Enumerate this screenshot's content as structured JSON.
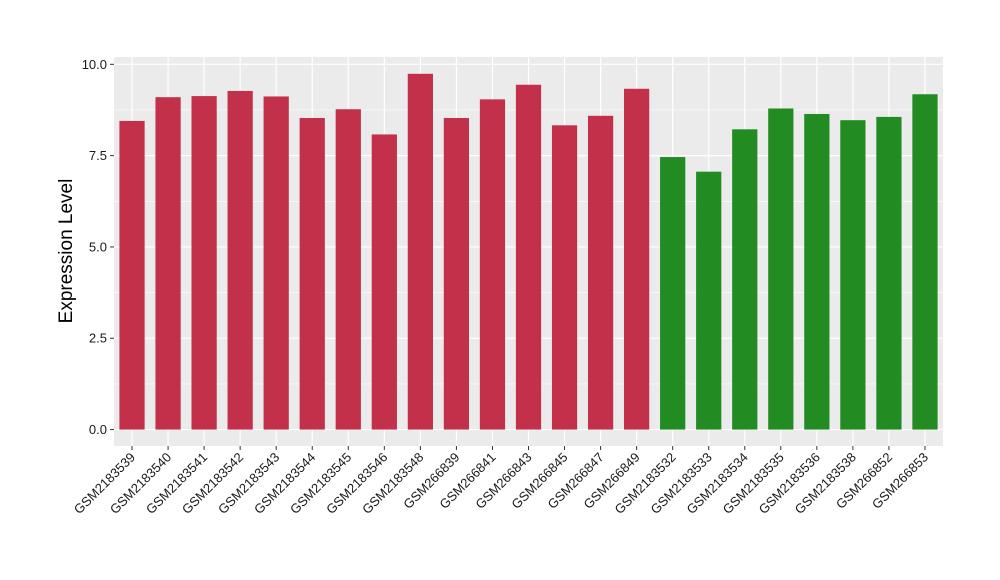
{
  "chart_data": {
    "type": "bar",
    "ylabel": "Expression Level",
    "xlabel": "",
    "ylim": [
      -0.45,
      10.2
    ],
    "yticks": [
      "0.0",
      "2.5",
      "5.0",
      "7.5",
      "10.0"
    ],
    "ytick_values": [
      0,
      2.5,
      5,
      7.5,
      10
    ],
    "grid": true,
    "panel_background": "#ebebeb",
    "grid_color": "#ffffff",
    "categories": [
      "GSM2183539",
      "GSM2183540",
      "GSM2183541",
      "GSM2183542",
      "GSM2183543",
      "GSM2183544",
      "GSM2183545",
      "GSM2183546",
      "GSM2183548",
      "GSM266839",
      "GSM266841",
      "GSM266843",
      "GSM266845",
      "GSM266847",
      "GSM266849",
      "GSM2183532",
      "GSM2183533",
      "GSM2183534",
      "GSM2183535",
      "GSM2183536",
      "GSM2183538",
      "GSM266852",
      "GSM266853"
    ],
    "values": [
      8.45,
      9.1,
      9.13,
      9.27,
      9.12,
      8.53,
      8.77,
      8.08,
      9.74,
      8.53,
      9.04,
      9.44,
      8.33,
      8.59,
      9.33,
      7.46,
      7.06,
      8.22,
      8.79,
      8.64,
      8.47,
      8.56,
      9.18
    ],
    "bar_colors": [
      "#c3304a",
      "#c3304a",
      "#c3304a",
      "#c3304a",
      "#c3304a",
      "#c3304a",
      "#c3304a",
      "#c3304a",
      "#c3304a",
      "#c3304a",
      "#c3304a",
      "#c3304a",
      "#c3304a",
      "#c3304a",
      "#c3304a",
      "#228b22",
      "#228b22",
      "#228b22",
      "#228b22",
      "#228b22",
      "#228b22",
      "#228b22",
      "#228b22"
    ]
  }
}
